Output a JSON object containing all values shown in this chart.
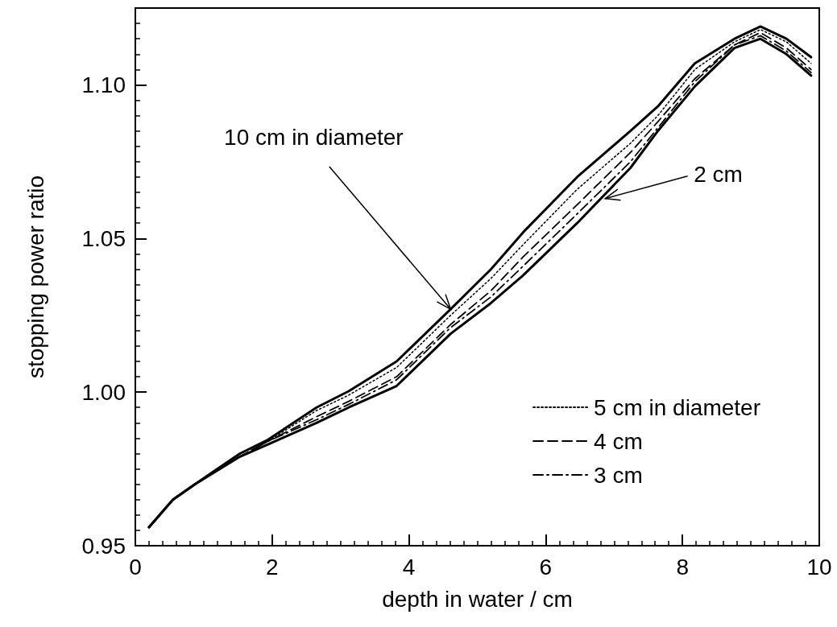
{
  "chart_data": {
    "type": "line",
    "xlabel": "depth in water / cm",
    "ylabel": "stopping power ratio",
    "x": [
      0.2,
      0.55,
      0.87,
      1.53,
      1.94,
      2.65,
      3.12,
      3.82,
      4.61,
      5.2,
      5.67,
      6.46,
      7.24,
      7.64,
      8.18,
      8.76,
      9.14,
      9.52,
      9.88
    ],
    "series": [
      {
        "color": "#000000",
        "line_style": "solid",
        "values": [
          0.956,
          0.965,
          0.97,
          0.98,
          0.9845,
          0.995,
          1.0003,
          1.01,
          1.027,
          1.04,
          1.052,
          1.07,
          1.085,
          1.093,
          1.107,
          1.115,
          1.119,
          1.115,
          1.109
        ]
      },
      {
        "name": "5 cm in diameter",
        "color": "#000000",
        "line_style": "dotted",
        "values": [
          0.956,
          0.965,
          0.97,
          0.98,
          0.984,
          0.994,
          0.999,
          1.008,
          1.025,
          1.037,
          1.048,
          1.066,
          1.081,
          1.09,
          1.105,
          1.114,
          1.118,
          1.114,
          1.107
        ]
      },
      {
        "name": "4 cm",
        "color": "#000000",
        "line_style": "dashed",
        "values": [
          0.956,
          0.965,
          0.97,
          0.979,
          0.984,
          0.992,
          0.997,
          1.005,
          1.022,
          1.033,
          1.044,
          1.061,
          1.078,
          1.088,
          1.102,
          1.113,
          1.117,
          1.112,
          1.105
        ]
      },
      {
        "name": "3 cm",
        "color": "#000000",
        "line_style": "dashdot",
        "values": [
          0.956,
          0.965,
          0.97,
          0.979,
          0.984,
          0.991,
          0.996,
          1.004,
          1.021,
          1.031,
          1.041,
          1.058,
          1.075,
          1.086,
          1.101,
          1.113,
          1.116,
          1.111,
          1.104
        ]
      },
      {
        "color": "#000000",
        "line_style": "solid",
        "values": [
          0.956,
          0.965,
          0.97,
          0.979,
          0.983,
          0.99,
          0.995,
          1.002,
          1.019,
          1.029,
          1.038,
          1.055,
          1.073,
          1.085,
          1.0995,
          1.112,
          1.115,
          1.11,
          1.103
        ]
      }
    ],
    "annotations": [
      {
        "text": "10 cm in diameter",
        "x": 4.61,
        "y": 1.027
      },
      {
        "text": "2 cm",
        "x": 6.87,
        "y": 1.063
      }
    ],
    "xlim": [
      0,
      10
    ],
    "xticks": [
      0,
      2,
      4,
      6,
      8,
      10
    ],
    "ylim": [
      0.95,
      1.125
    ],
    "yticks": [
      0.95,
      {
        "value": 1.0,
        "label": "1.00"
      },
      1.05,
      {
        "value": 1.1,
        "label": "1.10"
      }
    ],
    "grid": false,
    "legend": "bottom right",
    "marker": "none"
  }
}
